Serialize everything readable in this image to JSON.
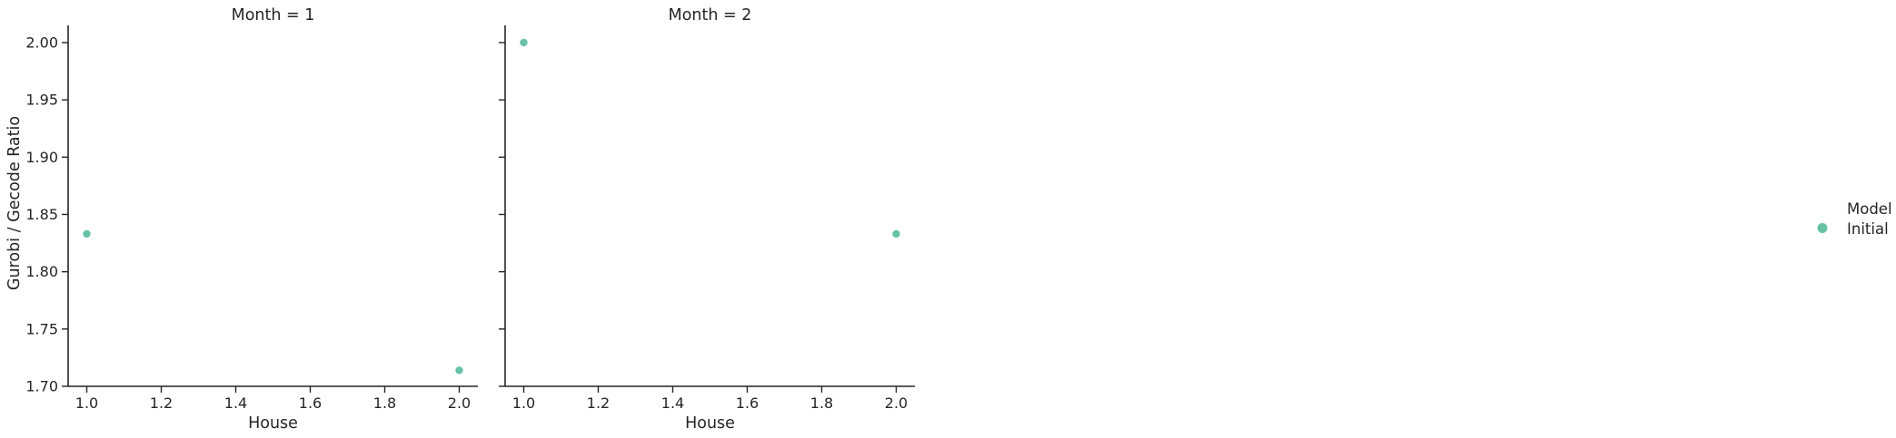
{
  "chart_data": {
    "type": "scatter",
    "ylabel": "Gurobi / Gecode Ratio",
    "xlabel": "House",
    "xlim": [
      0.95,
      2.05
    ],
    "ylim": [
      1.7,
      2.015
    ],
    "x_ticks": [
      "1.0",
      "1.2",
      "1.4",
      "1.6",
      "1.8",
      "2.0"
    ],
    "y_ticks": [
      "1.70",
      "1.75",
      "1.80",
      "1.85",
      "1.90",
      "1.95",
      "2.00"
    ],
    "grid": false,
    "panels": [
      {
        "title": "Month = 1",
        "series": [
          {
            "name": "Initial",
            "x": [
              1.0,
              2.0
            ],
            "y": [
              1.833,
              1.714
            ]
          }
        ]
      },
      {
        "title": "Month = 2",
        "series": [
          {
            "name": "Initial",
            "x": [
              1.0,
              2.0
            ],
            "y": [
              2.0,
              1.833
            ]
          }
        ]
      }
    ],
    "legend": {
      "title": "Model",
      "placement": "right",
      "entries": [
        {
          "label": "Initial",
          "color": "#66c2a5"
        }
      ]
    }
  },
  "colors": {
    "series": "#66c2a5",
    "axis": "#262626"
  }
}
